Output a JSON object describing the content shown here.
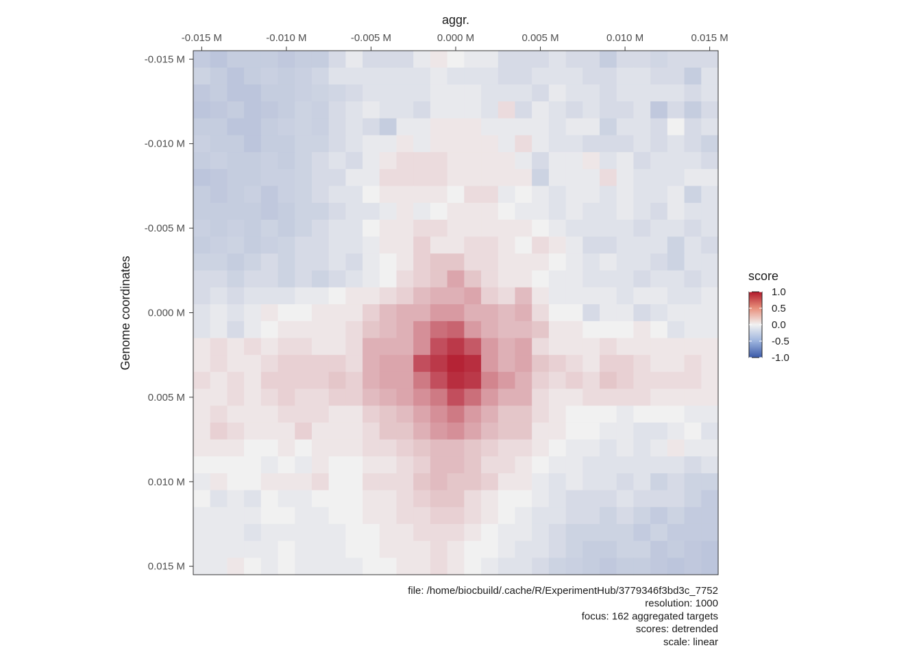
{
  "chart_data": {
    "type": "heatmap",
    "title": "aggr.",
    "ylabel": "Genome coordinates",
    "x_ticks": [
      "-0.015 M",
      "-0.010 M",
      "-0.005 M",
      "0.000 M",
      "0.005 M",
      "0.010 M",
      "0.015 M"
    ],
    "y_ticks": [
      "-0.015 M",
      "-0.010 M",
      "-0.005 M",
      "0.000 M",
      "0.005 M",
      "0.010 M",
      "0.015 M"
    ],
    "x_tick_values": [
      -0.015,
      -0.01,
      -0.005,
      0.0,
      0.005,
      0.01,
      0.015
    ],
    "y_tick_values": [
      -0.015,
      -0.01,
      -0.005,
      0.0,
      0.005,
      0.01,
      0.015
    ],
    "x_range_M": [
      -0.0155,
      0.0155
    ],
    "y_range_M": [
      -0.0155,
      0.0155
    ],
    "y_axis_reversed": true,
    "bin_size_M": 0.001,
    "grid": false,
    "legend": {
      "title": "score",
      "position": "right",
      "labels": [
        "1.0",
        "0.5",
        "0.0",
        "-0.5",
        "-1.0"
      ],
      "values": [
        1.0,
        0.5,
        0.0,
        -0.5,
        -1.0
      ],
      "range": [
        -1.0,
        1.0
      ]
    },
    "colors": {
      "low": "#3a59a8",
      "mid": "#f1f1f1",
      "high": "#b2182b"
    },
    "caption": [
      "file: /home/biocbuild/.cache/R/ExperimentHub/3779346f3bd3c_7752",
      "resolution: 1000",
      "focus: 162 aggregated targets",
      "scores: detrended",
      "scale: linear"
    ],
    "n_bins": 31,
    "scores": [
      [
        -0.25,
        -0.29,
        -0.24,
        -0.24,
        -0.24,
        -0.27,
        -0.24,
        -0.24,
        -0.15,
        -0.05,
        -0.15,
        -0.15,
        -0.15,
        -0.05,
        0.05,
        0.0,
        -0.05,
        -0.05,
        -0.15,
        -0.15,
        -0.15,
        -0.1,
        -0.15,
        -0.15,
        -0.24,
        -0.15,
        -0.15,
        -0.18,
        -0.15,
        -0.15,
        -0.15
      ],
      [
        -0.2,
        -0.24,
        -0.29,
        -0.24,
        -0.22,
        -0.24,
        -0.22,
        -0.18,
        -0.1,
        -0.1,
        -0.1,
        -0.1,
        -0.1,
        -0.1,
        -0.05,
        -0.1,
        -0.1,
        -0.1,
        -0.15,
        -0.15,
        -0.1,
        -0.1,
        -0.1,
        -0.15,
        -0.15,
        -0.1,
        -0.1,
        -0.15,
        -0.15,
        -0.24,
        -0.1
      ],
      [
        -0.27,
        -0.24,
        -0.29,
        -0.29,
        -0.24,
        -0.24,
        -0.22,
        -0.2,
        -0.18,
        -0.15,
        -0.1,
        -0.1,
        -0.1,
        -0.1,
        -0.05,
        -0.05,
        -0.05,
        -0.1,
        -0.1,
        -0.1,
        -0.15,
        -0.05,
        -0.1,
        -0.1,
        -0.15,
        -0.1,
        -0.1,
        -0.1,
        -0.1,
        -0.15,
        -0.1
      ],
      [
        -0.29,
        -0.27,
        -0.24,
        -0.29,
        -0.27,
        -0.24,
        -0.2,
        -0.22,
        -0.15,
        -0.1,
        -0.05,
        -0.1,
        -0.1,
        -0.15,
        -0.05,
        -0.05,
        -0.05,
        -0.1,
        0.1,
        -0.15,
        -0.05,
        -0.1,
        -0.15,
        -0.1,
        -0.15,
        -0.15,
        -0.1,
        -0.27,
        -0.15,
        -0.24,
        -0.15
      ],
      [
        -0.24,
        -0.24,
        -0.29,
        -0.29,
        -0.24,
        -0.22,
        -0.2,
        -0.22,
        -0.15,
        -0.1,
        -0.15,
        -0.24,
        -0.05,
        -0.05,
        0.05,
        0.05,
        0.05,
        -0.05,
        -0.05,
        -0.05,
        -0.05,
        -0.1,
        -0.05,
        -0.05,
        -0.2,
        -0.1,
        -0.1,
        -0.15,
        0.0,
        -0.15,
        -0.1
      ],
      [
        -0.22,
        -0.24,
        -0.24,
        -0.29,
        -0.24,
        -0.24,
        -0.2,
        -0.2,
        -0.15,
        -0.1,
        -0.05,
        -0.05,
        0.05,
        -0.05,
        0.05,
        0.05,
        0.05,
        0.05,
        -0.05,
        0.1,
        -0.05,
        -0.1,
        -0.1,
        -0.15,
        -0.15,
        -0.15,
        -0.1,
        -0.15,
        -0.1,
        -0.15,
        -0.2
      ],
      [
        -0.24,
        -0.22,
        -0.24,
        -0.24,
        -0.22,
        -0.24,
        -0.2,
        -0.15,
        -0.1,
        -0.15,
        -0.05,
        0.05,
        0.1,
        0.1,
        0.1,
        0.05,
        0.05,
        0.05,
        0.05,
        -0.05,
        -0.15,
        -0.05,
        -0.05,
        0.05,
        -0.1,
        -0.05,
        -0.15,
        -0.1,
        -0.1,
        -0.1,
        -0.15
      ],
      [
        -0.29,
        -0.27,
        -0.24,
        -0.24,
        -0.22,
        -0.22,
        -0.2,
        -0.15,
        -0.15,
        -0.05,
        -0.05,
        0.1,
        0.1,
        0.1,
        0.1,
        0.05,
        0.05,
        0.05,
        0.05,
        0.05,
        -0.2,
        -0.05,
        -0.05,
        -0.05,
        0.1,
        -0.05,
        -0.1,
        -0.1,
        -0.1,
        -0.05,
        -0.05
      ],
      [
        -0.24,
        -0.27,
        -0.24,
        -0.22,
        -0.27,
        -0.22,
        -0.2,
        -0.15,
        -0.1,
        -0.1,
        0.0,
        0.05,
        0.05,
        0.05,
        0.05,
        0.0,
        0.1,
        0.1,
        -0.05,
        0.0,
        -0.05,
        -0.1,
        -0.05,
        -0.05,
        -0.1,
        -0.05,
        -0.1,
        -0.1,
        -0.05,
        -0.2,
        -0.1
      ],
      [
        -0.24,
        -0.24,
        -0.24,
        -0.24,
        -0.27,
        -0.24,
        -0.2,
        -0.2,
        -0.15,
        -0.1,
        -0.1,
        -0.05,
        0.05,
        -0.05,
        0.0,
        0.05,
        0.05,
        0.05,
        0.0,
        -0.05,
        -0.05,
        -0.1,
        -0.05,
        -0.1,
        -0.1,
        -0.05,
        -0.1,
        -0.15,
        -0.05,
        -0.1,
        -0.1
      ],
      [
        -0.22,
        -0.24,
        -0.22,
        -0.24,
        -0.2,
        -0.24,
        -0.2,
        -0.15,
        -0.1,
        -0.1,
        0.0,
        0.05,
        0.05,
        0.1,
        0.1,
        0.05,
        0.05,
        0.05,
        0.05,
        0.05,
        0.0,
        -0.05,
        -0.1,
        -0.1,
        -0.1,
        -0.1,
        -0.15,
        -0.1,
        -0.1,
        -0.15,
        -0.1
      ],
      [
        -0.24,
        -0.22,
        -0.2,
        -0.24,
        -0.22,
        -0.2,
        -0.15,
        -0.15,
        -0.1,
        -0.1,
        -0.05,
        0.05,
        0.05,
        0.15,
        0.05,
        0.05,
        0.1,
        0.1,
        0.05,
        0.0,
        0.1,
        0.05,
        -0.05,
        -0.15,
        -0.15,
        -0.1,
        -0.1,
        -0.1,
        -0.2,
        -0.1,
        -0.15
      ],
      [
        -0.2,
        -0.2,
        -0.24,
        -0.2,
        -0.15,
        -0.2,
        -0.15,
        -0.15,
        -0.1,
        -0.15,
        -0.05,
        0.0,
        0.05,
        0.15,
        0.2,
        0.2,
        0.1,
        0.1,
        0.05,
        0.05,
        0.05,
        0.0,
        -0.05,
        -0.1,
        -0.05,
        -0.1,
        -0.1,
        -0.15,
        -0.2,
        -0.1,
        -0.1
      ],
      [
        -0.15,
        -0.15,
        -0.2,
        -0.15,
        -0.15,
        -0.2,
        -0.15,
        -0.2,
        -0.15,
        -0.1,
        -0.05,
        0.0,
        0.1,
        0.15,
        0.2,
        0.35,
        0.2,
        0.1,
        0.05,
        0.05,
        0.0,
        -0.05,
        -0.05,
        -0.1,
        -0.1,
        -0.1,
        -0.15,
        -0.1,
        -0.1,
        -0.15,
        -0.1
      ],
      [
        -0.15,
        -0.1,
        -0.15,
        -0.1,
        -0.1,
        -0.1,
        -0.05,
        -0.05,
        0.0,
        0.05,
        0.05,
        0.1,
        0.15,
        0.25,
        0.3,
        0.3,
        0.35,
        0.15,
        0.1,
        0.25,
        0.05,
        -0.05,
        -0.05,
        -0.05,
        -0.05,
        -0.1,
        -0.05,
        -0.05,
        -0.1,
        -0.1,
        -0.05
      ],
      [
        -0.1,
        -0.05,
        -0.1,
        -0.05,
        0.05,
        0.0,
        0.0,
        0.05,
        0.05,
        0.05,
        0.15,
        0.25,
        0.3,
        0.3,
        0.4,
        0.4,
        0.3,
        0.3,
        0.25,
        0.3,
        0.1,
        0.0,
        0.0,
        -0.15,
        -0.05,
        -0.05,
        -0.15,
        -0.1,
        -0.05,
        -0.05,
        -0.05
      ],
      [
        -0.1,
        -0.05,
        -0.15,
        -0.05,
        0.0,
        0.05,
        0.05,
        0.05,
        0.05,
        0.1,
        0.2,
        0.25,
        0.3,
        0.45,
        0.6,
        0.65,
        0.4,
        0.3,
        0.25,
        0.25,
        0.2,
        0.05,
        0.05,
        0.0,
        0.0,
        0.0,
        0.05,
        0.0,
        -0.1,
        -0.05,
        -0.05
      ],
      [
        0.05,
        0.1,
        0.05,
        0.1,
        0.05,
        0.1,
        0.1,
        0.05,
        0.05,
        0.1,
        0.3,
        0.3,
        0.3,
        0.45,
        0.75,
        0.85,
        0.7,
        0.4,
        0.3,
        0.35,
        0.1,
        0.05,
        0.05,
        0.05,
        0.1,
        0.05,
        0.05,
        0.05,
        0.05,
        0.05,
        0.05
      ],
      [
        0.05,
        0.1,
        0.05,
        0.05,
        0.1,
        0.15,
        0.15,
        0.15,
        0.15,
        0.1,
        0.3,
        0.35,
        0.35,
        0.75,
        0.85,
        0.95,
        0.9,
        0.4,
        0.3,
        0.35,
        0.2,
        0.15,
        0.1,
        0.05,
        0.15,
        0.15,
        0.1,
        0.05,
        0.05,
        0.1,
        0.05
      ],
      [
        0.1,
        0.05,
        0.1,
        0.05,
        0.15,
        0.15,
        0.15,
        0.15,
        0.2,
        0.15,
        0.3,
        0.35,
        0.35,
        0.55,
        0.75,
        0.9,
        0.85,
        0.5,
        0.4,
        0.3,
        0.15,
        0.1,
        0.15,
        0.1,
        0.2,
        0.15,
        0.1,
        0.1,
        0.1,
        0.1,
        0.05
      ],
      [
        0.05,
        0.05,
        0.1,
        0.05,
        0.1,
        0.15,
        0.1,
        0.1,
        0.15,
        0.15,
        0.25,
        0.3,
        0.35,
        0.45,
        0.55,
        0.75,
        0.6,
        0.4,
        0.3,
        0.3,
        0.1,
        0.05,
        0.05,
        0.1,
        0.1,
        0.1,
        0.1,
        0.05,
        0.05,
        0.05,
        0.05
      ],
      [
        0.05,
        0.1,
        0.05,
        0.05,
        0.05,
        0.1,
        0.1,
        0.1,
        0.05,
        0.05,
        0.15,
        0.2,
        0.25,
        0.35,
        0.45,
        0.55,
        0.4,
        0.3,
        0.2,
        0.2,
        0.1,
        0.05,
        0.0,
        0.0,
        0.0,
        -0.05,
        0.0,
        0.0,
        0.0,
        -0.05,
        -0.05
      ],
      [
        0.05,
        0.15,
        0.1,
        0.05,
        0.05,
        0.05,
        0.15,
        0.05,
        0.05,
        0.05,
        0.1,
        0.2,
        0.2,
        0.3,
        0.4,
        0.45,
        0.35,
        0.25,
        0.2,
        0.2,
        0.05,
        0.05,
        0.0,
        0.0,
        -0.05,
        -0.05,
        -0.1,
        -0.1,
        -0.05,
        0.0,
        -0.1
      ],
      [
        0.05,
        0.05,
        0.05,
        0.0,
        0.0,
        0.05,
        0.0,
        0.05,
        0.05,
        0.05,
        0.1,
        0.1,
        0.15,
        0.2,
        0.25,
        0.25,
        0.2,
        0.15,
        0.1,
        0.1,
        0.05,
        0.0,
        -0.05,
        -0.05,
        -0.1,
        -0.05,
        -0.1,
        -0.05,
        0.05,
        -0.05,
        -0.05
      ],
      [
        0.0,
        0.0,
        0.0,
        0.0,
        -0.05,
        0.0,
        -0.05,
        0.05,
        0.0,
        0.0,
        0.05,
        0.05,
        0.1,
        0.15,
        0.25,
        0.25,
        0.2,
        0.1,
        0.1,
        0.05,
        0.0,
        -0.05,
        -0.05,
        -0.1,
        -0.1,
        -0.1,
        -0.1,
        -0.1,
        -0.1,
        -0.15,
        -0.1
      ],
      [
        -0.05,
        0.05,
        0.0,
        0.0,
        0.05,
        0.05,
        0.05,
        0.1,
        0.0,
        0.0,
        0.1,
        0.1,
        0.1,
        0.2,
        0.25,
        0.2,
        0.2,
        0.15,
        0.05,
        0.05,
        -0.05,
        -0.1,
        -0.05,
        -0.1,
        -0.1,
        -0.15,
        -0.1,
        -0.2,
        -0.15,
        -0.2,
        -0.2
      ],
      [
        0.0,
        -0.1,
        -0.05,
        -0.1,
        0.0,
        -0.05,
        -0.05,
        0.0,
        0.0,
        0.0,
        0.05,
        0.05,
        0.1,
        0.15,
        0.2,
        0.2,
        0.1,
        0.05,
        0.0,
        0.0,
        -0.05,
        -0.1,
        -0.15,
        -0.15,
        -0.15,
        -0.1,
        -0.15,
        -0.15,
        -0.15,
        -0.2,
        -0.25
      ],
      [
        -0.05,
        -0.05,
        -0.05,
        -0.05,
        0.0,
        0.0,
        -0.05,
        -0.05,
        0.0,
        0.0,
        0.05,
        0.05,
        0.1,
        0.1,
        0.15,
        0.15,
        0.1,
        0.05,
        0.0,
        -0.05,
        -0.1,
        -0.1,
        -0.15,
        -0.15,
        -0.2,
        -0.15,
        -0.2,
        -0.25,
        -0.2,
        -0.25,
        -0.25
      ],
      [
        -0.05,
        -0.05,
        -0.05,
        -0.1,
        -0.05,
        -0.05,
        -0.05,
        -0.05,
        -0.05,
        0.0,
        0.0,
        0.05,
        0.05,
        0.1,
        0.1,
        0.1,
        0.05,
        0.0,
        -0.05,
        -0.05,
        -0.1,
        -0.15,
        -0.2,
        -0.2,
        -0.2,
        -0.2,
        -0.25,
        -0.2,
        -0.25,
        -0.25,
        -0.25
      ],
      [
        -0.05,
        -0.05,
        -0.05,
        -0.05,
        -0.05,
        0.0,
        -0.05,
        -0.05,
        -0.05,
        0.0,
        0.0,
        0.05,
        0.05,
        0.05,
        0.1,
        0.05,
        0.0,
        0.0,
        -0.05,
        -0.1,
        -0.1,
        -0.15,
        -0.2,
        -0.24,
        -0.24,
        -0.2,
        -0.2,
        -0.27,
        -0.24,
        -0.27,
        -0.29
      ],
      [
        -0.05,
        -0.05,
        0.05,
        0.0,
        -0.05,
        0.0,
        -0.05,
        -0.05,
        -0.05,
        -0.05,
        0.0,
        0.0,
        0.05,
        0.05,
        0.1,
        0.05,
        0.0,
        -0.05,
        -0.1,
        -0.1,
        -0.15,
        -0.2,
        -0.22,
        -0.24,
        -0.27,
        -0.24,
        -0.24,
        -0.27,
        -0.29,
        -0.27,
        -0.29
      ]
    ]
  }
}
